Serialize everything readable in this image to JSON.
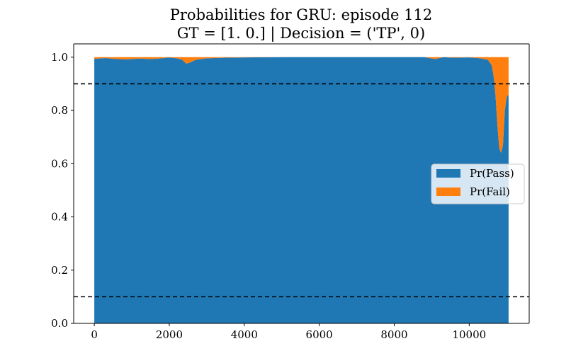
{
  "chart_data": {
    "type": "area",
    "title": "Probabilities for GRU: episode 112",
    "subtitle": "GT = [1. 0.] | Decision = ('TP', 0)",
    "xlabel": "",
    "ylabel": "",
    "xlim": [
      -550,
      11600
    ],
    "ylim": [
      0.0,
      1.05
    ],
    "xticks": [
      0,
      2000,
      4000,
      6000,
      8000,
      10000
    ],
    "yticks": [
      0.0,
      0.2,
      0.4,
      0.6,
      0.8,
      1.0
    ],
    "ytick_labels": [
      "0.0",
      "0.2",
      "0.4",
      "0.6",
      "0.8",
      "1.0"
    ],
    "hlines": [
      0.9,
      0.1
    ],
    "hline_style": "dashed",
    "legend_placement": "center-right",
    "stacked": true,
    "x": [
      0,
      300,
      600,
      900,
      1200,
      1500,
      1800,
      2000,
      2200,
      2350,
      2450,
      2550,
      2700,
      3000,
      3500,
      4000,
      5000,
      6000,
      7000,
      8000,
      8800,
      9100,
      9300,
      9600,
      10000,
      10300,
      10500,
      10600,
      10650,
      10700,
      10750,
      10800,
      10850,
      10900,
      10950,
      11000,
      11050
    ],
    "series": [
      {
        "name": "Pr(Pass)",
        "color": "#1f77b4",
        "values": [
          0.994,
          0.997,
          0.993,
          0.992,
          0.995,
          0.993,
          0.996,
          0.999,
          0.996,
          0.99,
          0.976,
          0.98,
          0.99,
          0.996,
          0.998,
          0.999,
          1.0,
          1.0,
          1.0,
          1.0,
          1.0,
          0.993,
          1.0,
          0.998,
          0.999,
          0.996,
          0.99,
          0.97,
          0.93,
          0.86,
          0.75,
          0.66,
          0.64,
          0.67,
          0.8,
          0.85,
          0.86
        ]
      },
      {
        "name": "Pr(Fail)",
        "color": "#ff7f0e",
        "values": [
          0.006,
          0.003,
          0.007,
          0.008,
          0.005,
          0.007,
          0.004,
          0.001,
          0.004,
          0.01,
          0.024,
          0.02,
          0.01,
          0.004,
          0.002,
          0.001,
          0.0,
          0.0,
          0.0,
          0.0,
          0.0,
          0.007,
          0.0,
          0.002,
          0.001,
          0.004,
          0.01,
          0.03,
          0.07,
          0.14,
          0.25,
          0.34,
          0.36,
          0.33,
          0.2,
          0.15,
          0.14
        ]
      }
    ]
  }
}
